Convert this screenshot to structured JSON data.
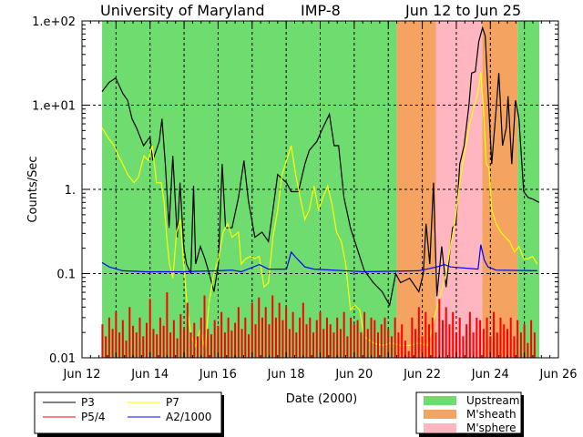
{
  "chart_data": {
    "type": "line",
    "title": {
      "left": "University of Maryland",
      "center": "IMP-8",
      "right": "Jun 12 to Jun 25"
    },
    "xlabel": "Date (2000)",
    "ylabel": "Counts/Sec",
    "yscale": "log",
    "ylim": [
      0.01,
      100
    ],
    "xlim_days": [
      12,
      26
    ],
    "x_unit": "day of June 2000",
    "x_ticks": [
      {
        "d": 12,
        "label": "Jun 12"
      },
      {
        "d": 14,
        "label": "Jun 14"
      },
      {
        "d": 16,
        "label": "Jun 16"
      },
      {
        "d": 18,
        "label": "Jun 18"
      },
      {
        "d": 20,
        "label": "Jun 20"
      },
      {
        "d": 22,
        "label": "Jun 22"
      },
      {
        "d": 24,
        "label": "Jun 24"
      },
      {
        "d": 26,
        "label": "Jun 26"
      }
    ],
    "y_ticks": [
      {
        "v": 0.01,
        "label": "0.01"
      },
      {
        "v": 0.1,
        "label": "0.1"
      },
      {
        "v": 1,
        "label": "1."
      },
      {
        "v": 10,
        "label": "1.e+01"
      },
      {
        "v": 100,
        "label": "1.e+02"
      }
    ],
    "grid": true,
    "regions": [
      {
        "name": "Upstream",
        "start": 12.59,
        "end": 21.25,
        "color": "#6fdc6f"
      },
      {
        "name": "M'sheath",
        "start": 21.25,
        "end": 22.4,
        "color": "#f4a460"
      },
      {
        "name": "M'sphere",
        "start": 22.4,
        "end": 23.76,
        "color": "#ffb6c1"
      },
      {
        "name": "M'sheath",
        "start": 23.76,
        "end": 24.8,
        "color": "#f4a460"
      },
      {
        "name": "Upstream",
        "start": 24.8,
        "end": 25.44,
        "color": "#6fdc6f"
      }
    ],
    "region_legend": [
      {
        "label": "Upstream",
        "color": "#6fdc6f"
      },
      {
        "label": "M'sheath",
        "color": "#f4a460"
      },
      {
        "label": "M'sphere",
        "color": "#ffb6c1"
      }
    ],
    "series": [
      {
        "name": "P3",
        "color": "#000000",
        "style": "line",
        "points": [
          [
            12.59,
            14.5
          ],
          [
            12.8,
            18.7
          ],
          [
            12.99,
            21
          ],
          [
            13.2,
            13.8
          ],
          [
            13.34,
            11.4
          ],
          [
            13.47,
            6.9
          ],
          [
            13.6,
            5.4
          ],
          [
            13.81,
            3.3
          ],
          [
            14.0,
            4.2
          ],
          [
            14.08,
            2.2
          ],
          [
            14.27,
            3.7
          ],
          [
            14.35,
            6.9
          ],
          [
            14.45,
            2.0
          ],
          [
            14.56,
            0.35
          ],
          [
            14.67,
            2.5
          ],
          [
            14.8,
            0.27
          ],
          [
            14.88,
            1.2
          ],
          [
            14.99,
            0.21
          ],
          [
            15.07,
            0.13
          ],
          [
            15.2,
            0.1
          ],
          [
            15.28,
            1.1
          ],
          [
            15.34,
            0.13
          ],
          [
            15.48,
            0.21
          ],
          [
            15.61,
            0.15
          ],
          [
            15.74,
            0.1
          ],
          [
            15.88,
            0.061
          ],
          [
            16.01,
            0.13
          ],
          [
            16.12,
            2.0
          ],
          [
            16.22,
            0.35
          ],
          [
            16.41,
            0.35
          ],
          [
            16.6,
            0.8
          ],
          [
            16.76,
            2.2
          ],
          [
            16.89,
            0.73
          ],
          [
            17.08,
            0.27
          ],
          [
            17.29,
            0.31
          ],
          [
            17.48,
            0.24
          ],
          [
            17.61,
            0.57
          ],
          [
            17.75,
            1.5
          ],
          [
            18.01,
            1.2
          ],
          [
            18.15,
            0.94
          ],
          [
            18.36,
            0.94
          ],
          [
            18.55,
            2.0
          ],
          [
            18.68,
            2.9
          ],
          [
            18.9,
            3.7
          ],
          [
            19.08,
            5.4
          ],
          [
            19.27,
            7.8
          ],
          [
            19.41,
            3.3
          ],
          [
            19.54,
            3.3
          ],
          [
            19.7,
            0.8
          ],
          [
            19.89,
            0.35
          ],
          [
            20.02,
            0.24
          ],
          [
            20.29,
            0.11
          ],
          [
            20.56,
            0.078
          ],
          [
            20.82,
            0.061
          ],
          [
            21.04,
            0.042
          ],
          [
            21.22,
            0.1
          ],
          [
            21.36,
            0.078
          ],
          [
            21.63,
            0.088
          ],
          [
            21.9,
            0.061
          ],
          [
            22.03,
            0.1
          ],
          [
            22.11,
            0.39
          ],
          [
            22.22,
            0.13
          ],
          [
            22.33,
            1.2
          ],
          [
            22.43,
            0.054
          ],
          [
            22.57,
            0.21
          ],
          [
            22.7,
            0.069
          ],
          [
            22.89,
            0.35
          ],
          [
            22.99,
            0.39
          ],
          [
            23.1,
            2.0
          ],
          [
            23.23,
            3.3
          ],
          [
            23.37,
            10
          ],
          [
            23.45,
            24
          ],
          [
            23.56,
            25
          ],
          [
            23.66,
            57
          ],
          [
            23.77,
            83
          ],
          [
            23.85,
            66
          ],
          [
            23.93,
            14.5
          ],
          [
            24.04,
            2.0
          ],
          [
            24.17,
            8.8
          ],
          [
            24.25,
            24
          ],
          [
            24.36,
            3.3
          ],
          [
            24.47,
            5.4
          ],
          [
            24.52,
            12.8
          ],
          [
            24.63,
            2.0
          ],
          [
            24.74,
            11.4
          ],
          [
            24.84,
            6.9
          ],
          [
            24.98,
            0.94
          ],
          [
            25.11,
            0.8
          ],
          [
            25.24,
            0.77
          ],
          [
            25.43,
            0.7
          ]
        ]
      },
      {
        "name": "P7",
        "color": "#ffff00",
        "style": "line",
        "points": [
          [
            12.59,
            5.4
          ],
          [
            12.75,
            4.2
          ],
          [
            12.94,
            3.3
          ],
          [
            13.07,
            2.5
          ],
          [
            13.2,
            2.0
          ],
          [
            13.34,
            1.5
          ],
          [
            13.53,
            1.2
          ],
          [
            13.66,
            1.4
          ],
          [
            13.82,
            2.5
          ],
          [
            13.95,
            2.2
          ],
          [
            14.06,
            3.3
          ],
          [
            14.19,
            1.2
          ],
          [
            14.33,
            1.2
          ],
          [
            14.41,
            0.73
          ],
          [
            14.49,
            0.27
          ],
          [
            14.57,
            0.13
          ],
          [
            14.67,
            0.088
          ],
          [
            14.78,
            0.31
          ],
          [
            14.89,
            0.44
          ],
          [
            14.99,
            0.13
          ],
          [
            15.1,
            0.037
          ],
          [
            15.21,
            0.018
          ],
          [
            15.34,
            0.014
          ],
          [
            15.48,
            0.022
          ],
          [
            15.61,
            0.012
          ],
          [
            15.74,
            0.047
          ],
          [
            15.88,
            0.1
          ],
          [
            16.01,
            0.15
          ],
          [
            16.15,
            0.31
          ],
          [
            16.28,
            0.39
          ],
          [
            16.41,
            0.27
          ],
          [
            16.6,
            0.31
          ],
          [
            16.68,
            0.13
          ],
          [
            16.81,
            0.15
          ],
          [
            16.95,
            0.16
          ],
          [
            17.08,
            0.15
          ],
          [
            17.21,
            0.16
          ],
          [
            17.35,
            0.069
          ],
          [
            17.48,
            0.078
          ],
          [
            17.61,
            0.27
          ],
          [
            17.75,
            0.57
          ],
          [
            17.88,
            1.5
          ],
          [
            18.01,
            2.2
          ],
          [
            18.15,
            3.3
          ],
          [
            18.28,
            1.5
          ],
          [
            18.41,
            0.8
          ],
          [
            18.55,
            0.44
          ],
          [
            18.68,
            0.57
          ],
          [
            18.82,
            1.1
          ],
          [
            18.95,
            0.57
          ],
          [
            19.08,
            0.8
          ],
          [
            19.22,
            1.1
          ],
          [
            19.35,
            0.65
          ],
          [
            19.48,
            0.31
          ],
          [
            19.62,
            0.24
          ],
          [
            19.75,
            0.13
          ],
          [
            19.89,
            0.037
          ],
          [
            20.02,
            0.042
          ],
          [
            20.16,
            0.037
          ],
          [
            20.29,
            0.018
          ],
          [
            20.56,
            0.015
          ],
          [
            20.82,
            0.014
          ],
          [
            21.09,
            0.015
          ],
          [
            21.36,
            0.014
          ],
          [
            21.63,
            0.014
          ],
          [
            21.9,
            0.015
          ],
          [
            22.16,
            0.014
          ],
          [
            22.38,
            0.033
          ],
          [
            22.48,
            0.047
          ],
          [
            22.7,
            0.1
          ],
          [
            22.83,
            0.21
          ],
          [
            22.97,
            0.44
          ],
          [
            23.1,
            1.2
          ],
          [
            23.23,
            2.5
          ],
          [
            23.37,
            5.4
          ],
          [
            23.5,
            8.8
          ],
          [
            23.64,
            14.5
          ],
          [
            23.72,
            25
          ],
          [
            23.8,
            8.8
          ],
          [
            23.88,
            2.0
          ],
          [
            23.96,
            1.8
          ],
          [
            24.04,
            0.57
          ],
          [
            24.17,
            0.39
          ],
          [
            24.31,
            0.31
          ],
          [
            24.44,
            0.27
          ],
          [
            24.57,
            0.24
          ],
          [
            24.71,
            0.18
          ],
          [
            24.84,
            0.21
          ],
          [
            24.98,
            0.15
          ],
          [
            25.11,
            0.15
          ],
          [
            25.24,
            0.16
          ],
          [
            25.38,
            0.13
          ]
        ]
      },
      {
        "name": "A2/1000",
        "color": "#0000ff",
        "style": "line",
        "points": [
          [
            12.59,
            0.135
          ],
          [
            12.8,
            0.12
          ],
          [
            13.2,
            0.108
          ],
          [
            13.87,
            0.105
          ],
          [
            14.94,
            0.105
          ],
          [
            16.01,
            0.108
          ],
          [
            16.41,
            0.11
          ],
          [
            16.68,
            0.105
          ],
          [
            17.21,
            0.128
          ],
          [
            17.48,
            0.113
          ],
          [
            18.01,
            0.113
          ],
          [
            18.15,
            0.18
          ],
          [
            18.28,
            0.156
          ],
          [
            18.55,
            0.12
          ],
          [
            18.82,
            0.113
          ],
          [
            20.29,
            0.105
          ],
          [
            21.9,
            0.108
          ],
          [
            22.43,
            0.12
          ],
          [
            22.65,
            0.128
          ],
          [
            22.83,
            0.12
          ],
          [
            23.64,
            0.113
          ],
          [
            23.72,
            0.22
          ],
          [
            23.82,
            0.145
          ],
          [
            23.93,
            0.12
          ],
          [
            24.17,
            0.11
          ],
          [
            25.38,
            0.108
          ]
        ]
      },
      {
        "name": "P5/4",
        "color": "#ff0000",
        "style": "spikes",
        "start": 12.6,
        "step": 0.1,
        "values": [
          0.025,
          0.018,
          0.03,
          0.022,
          0.035,
          0.02,
          0.028,
          0.016,
          0.04,
          0.024,
          0.02,
          0.03,
          0.018,
          0.026,
          0.05,
          0.022,
          0.019,
          0.03,
          0.024,
          0.06,
          0.02,
          0.028,
          0.017,
          0.033,
          0.022,
          0.045,
          0.02,
          0.026,
          0.018,
          0.03,
          0.055,
          0.022,
          0.019,
          0.028,
          0.024,
          0.035,
          0.02,
          0.03,
          0.021,
          0.026,
          0.04,
          0.022,
          0.03,
          0.019,
          0.045,
          0.025,
          0.052,
          0.03,
          0.04,
          0.025,
          0.055,
          0.03,
          0.045,
          0.028,
          0.04,
          0.022,
          0.035,
          0.02,
          0.03,
          0.045,
          0.025,
          0.03,
          0.02,
          0.028,
          0.035,
          0.022,
          0.03,
          0.025,
          0.02,
          0.03,
          0.022,
          0.035,
          0.018,
          0.03,
          0.025,
          0.028,
          0.02,
          0.035,
          0.022,
          0.03,
          0.028,
          0.02,
          0.025,
          0.03,
          0.022,
          0.018,
          0.03,
          0.02,
          0.025,
          0.016,
          0.012,
          0.03,
          0.022,
          0.04,
          0.018,
          0.035,
          0.025,
          0.03,
          0.02,
          0.05,
          0.028,
          0.04,
          0.025,
          0.035,
          0.02,
          0.03,
          0.018,
          0.025,
          0.035,
          0.02,
          0.03,
          0.028,
          0.022,
          0.03,
          0.018,
          0.035,
          0.02,
          0.03,
          0.025,
          0.022,
          0.03,
          0.018,
          0.028,
          0.02,
          0.025,
          0.015,
          0.028,
          0.02
        ]
      }
    ],
    "legend": [
      {
        "label": "P3",
        "color": "#000000"
      },
      {
        "label": "P7",
        "color": "#ffff00"
      },
      {
        "label": "P5/4",
        "color": "#ff0000"
      },
      {
        "label": "A2/1000",
        "color": "#0000ff"
      }
    ]
  }
}
